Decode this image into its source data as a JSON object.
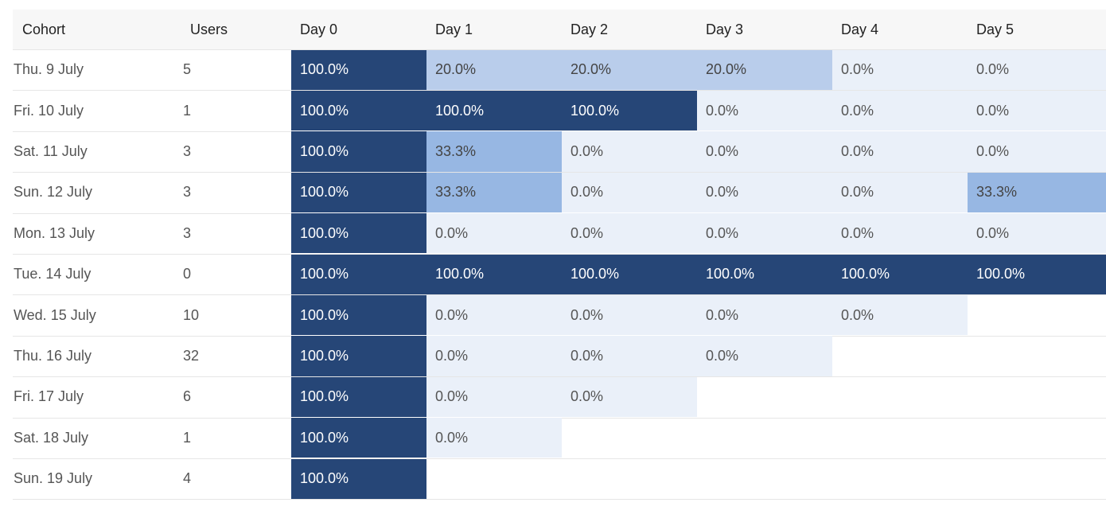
{
  "table": {
    "headers": [
      "Cohort",
      "Users",
      "Day 0",
      "Day 1",
      "Day 2",
      "Day 3",
      "Day 4",
      "Day 5"
    ],
    "rows": [
      {
        "cohort": "Thu. 9 July",
        "users": "5",
        "cells": [
          "100.0%",
          "20.0%",
          "20.0%",
          "20.0%",
          "0.0%",
          "0.0%"
        ]
      },
      {
        "cohort": "Fri. 10 July",
        "users": "1",
        "cells": [
          "100.0%",
          "100.0%",
          "100.0%",
          "0.0%",
          "0.0%",
          "0.0%"
        ]
      },
      {
        "cohort": "Sat. 11 July",
        "users": "3",
        "cells": [
          "100.0%",
          "33.3%",
          "0.0%",
          "0.0%",
          "0.0%",
          "0.0%"
        ]
      },
      {
        "cohort": "Sun. 12 July",
        "users": "3",
        "cells": [
          "100.0%",
          "33.3%",
          "0.0%",
          "0.0%",
          "0.0%",
          "33.3%"
        ]
      },
      {
        "cohort": "Mon. 13 July",
        "users": "3",
        "cells": [
          "100.0%",
          "0.0%",
          "0.0%",
          "0.0%",
          "0.0%",
          "0.0%"
        ]
      },
      {
        "cohort": "Tue. 14 July",
        "users": "0",
        "cells": [
          "100.0%",
          "100.0%",
          "100.0%",
          "100.0%",
          "100.0%",
          "100.0%"
        ]
      },
      {
        "cohort": "Wed. 15 July",
        "users": "10",
        "cells": [
          "100.0%",
          "0.0%",
          "0.0%",
          "0.0%",
          "0.0%"
        ]
      },
      {
        "cohort": "Thu. 16 July",
        "users": "32",
        "cells": [
          "100.0%",
          "0.0%",
          "0.0%",
          "0.0%"
        ]
      },
      {
        "cohort": "Fri. 17 July",
        "users": "6",
        "cells": [
          "100.0%",
          "0.0%",
          "0.0%"
        ]
      },
      {
        "cohort": "Sat. 18 July",
        "users": "1",
        "cells": [
          "100.0%",
          "0.0%"
        ]
      },
      {
        "cohort": "Sun. 19 July",
        "users": "4",
        "cells": [
          "100.0%"
        ]
      }
    ]
  }
}
